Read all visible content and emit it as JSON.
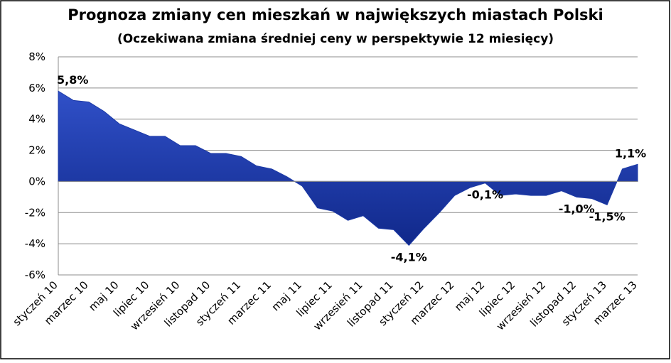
{
  "chart_data": {
    "type": "area",
    "title": "Prognoza zmiany cen mieszkań w największych miastach Polski",
    "subtitle": "(Oczekiwana zmiana średniej ceny w perspektywie 12 miesięcy)",
    "categories": [
      "styczeń 10",
      null,
      "marzec 10",
      null,
      "maj 10",
      null,
      "lipiec 10",
      null,
      "wrzesień 10",
      null,
      "listopad 10",
      null,
      "styczeń 11",
      null,
      "marzec 11",
      null,
      "maj 11",
      null,
      "lipiec 11",
      null,
      "wrzesień 11",
      null,
      "listopad 11",
      null,
      "styczeń 12",
      null,
      "marzec 12",
      null,
      "maj 12",
      null,
      "lipiec 12",
      null,
      "wrzesień 12",
      null,
      "listopad 12",
      null,
      "styczeń 13",
      null,
      "marzec 13"
    ],
    "values": [
      5.8,
      5.2,
      5.1,
      4.5,
      3.7,
      3.3,
      2.9,
      2.9,
      2.3,
      2.3,
      1.8,
      1.8,
      1.6,
      1.0,
      0.8,
      0.3,
      -0.3,
      -1.7,
      -1.9,
      -2.5,
      -2.2,
      -3.0,
      -3.1,
      -4.1,
      -3.0,
      -2.0,
      -0.9,
      -0.4,
      -0.1,
      -0.9,
      -0.8,
      -0.9,
      -0.9,
      -0.6,
      -1.0,
      -1.1,
      -1.5,
      0.8,
      1.1
    ],
    "value_labels": [
      "5,8%",
      null,
      null,
      null,
      null,
      null,
      null,
      null,
      null,
      null,
      null,
      null,
      null,
      null,
      null,
      null,
      null,
      null,
      null,
      null,
      null,
      null,
      null,
      "-4,1%",
      null,
      null,
      null,
      null,
      "-0,1%",
      null,
      null,
      null,
      null,
      null,
      "-1,0%",
      null,
      "-1,5%",
      null,
      "1,1%"
    ],
    "color": "#1c3aa6",
    "ylim": [
      -6,
      8
    ],
    "yticks": [
      {
        "value": -6,
        "label": "-6%"
      },
      {
        "value": -4,
        "label": "-4%"
      },
      {
        "value": -2,
        "label": "-2%"
      },
      {
        "value": 0,
        "label": "0%"
      },
      {
        "value": 2,
        "label": "2%"
      },
      {
        "value": 4,
        "label": "4%"
      },
      {
        "value": 6,
        "label": "6%"
      },
      {
        "value": 8,
        "label": "8%"
      }
    ],
    "grid": true
  }
}
